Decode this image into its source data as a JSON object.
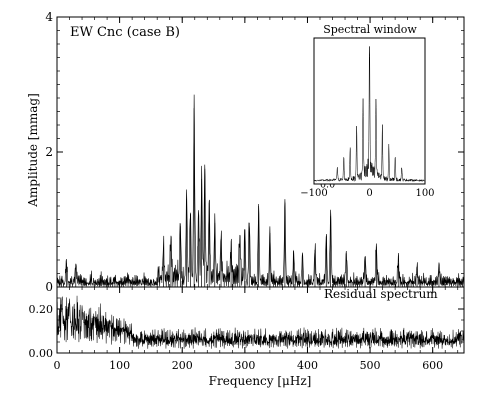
{
  "chart_data": [
    {
      "panel": "main",
      "type": "line",
      "title": "EW Cnc (case B)",
      "xlabel": "Frequency [μHz]",
      "ylabel": "Amplitude [mmag]",
      "xlim": [
        0,
        650
      ],
      "ylim": [
        0,
        4
      ],
      "x_ticks": [
        0,
        100,
        200,
        300,
        400,
        500,
        600
      ],
      "y_ticks": [
        0,
        2,
        4
      ],
      "noise_level": 0.18,
      "peaks": [
        {
          "x": 15,
          "y": 0.35
        },
        {
          "x": 30,
          "y": 0.3
        },
        {
          "x": 170,
          "y": 0.55
        },
        {
          "x": 182,
          "y": 0.7
        },
        {
          "x": 197,
          "y": 0.9
        },
        {
          "x": 207,
          "y": 1.3
        },
        {
          "x": 213,
          "y": 1.1
        },
        {
          "x": 219,
          "y": 2.65
        },
        {
          "x": 226,
          "y": 1.05
        },
        {
          "x": 231,
          "y": 1.6
        },
        {
          "x": 236,
          "y": 1.75
        },
        {
          "x": 243,
          "y": 1.25
        },
        {
          "x": 252,
          "y": 0.95
        },
        {
          "x": 262,
          "y": 0.7
        },
        {
          "x": 278,
          "y": 0.55
        },
        {
          "x": 292,
          "y": 0.75
        },
        {
          "x": 300,
          "y": 0.85
        },
        {
          "x": 307,
          "y": 0.95
        },
        {
          "x": 322,
          "y": 1.2
        },
        {
          "x": 340,
          "y": 0.8
        },
        {
          "x": 364,
          "y": 1.25
        },
        {
          "x": 378,
          "y": 0.5
        },
        {
          "x": 392,
          "y": 0.45
        },
        {
          "x": 412,
          "y": 0.55
        },
        {
          "x": 430,
          "y": 0.75
        },
        {
          "x": 437,
          "y": 1.05
        },
        {
          "x": 462,
          "y": 0.5
        },
        {
          "x": 492,
          "y": 0.45
        },
        {
          "x": 510,
          "y": 0.6
        },
        {
          "x": 545,
          "y": 0.35
        },
        {
          "x": 575,
          "y": 0.3
        },
        {
          "x": 610,
          "y": 0.3
        }
      ]
    },
    {
      "panel": "inset",
      "type": "line",
      "title": "Spectral window",
      "xlim": [
        -100,
        100
      ],
      "ylim": [
        0,
        1.1
      ],
      "x_ticks": [
        -100,
        0,
        100
      ],
      "y_ticks": [
        0.0,
        0.4,
        0.8
      ],
      "peaks": [
        {
          "x": 0,
          "y": 1.0
        },
        {
          "x": -11.6,
          "y": 0.56
        },
        {
          "x": 11.6,
          "y": 0.56
        },
        {
          "x": -23.2,
          "y": 0.4
        },
        {
          "x": 23.2,
          "y": 0.4
        },
        {
          "x": -34.8,
          "y": 0.25
        },
        {
          "x": 34.8,
          "y": 0.25
        },
        {
          "x": -46.4,
          "y": 0.18
        },
        {
          "x": 46.4,
          "y": 0.18
        },
        {
          "x": -58,
          "y": 0.1
        },
        {
          "x": 58,
          "y": 0.1
        }
      ]
    },
    {
      "panel": "residual",
      "type": "line",
      "title": "Residual spectrum",
      "xlabel": "Frequency [μHz]",
      "xlim": [
        0,
        650
      ],
      "ylim": [
        0,
        0.3
      ],
      "x_ticks": [
        0,
        100,
        200,
        300,
        400,
        500,
        600
      ],
      "y_ticks": [
        0.0,
        0.2
      ],
      "y_tick_labels": [
        "0.00",
        "0.20"
      ],
      "peaks": [
        {
          "x": 8,
          "y": 0.28
        },
        {
          "x": 20,
          "y": 0.25
        },
        {
          "x": 40,
          "y": 0.22
        },
        {
          "x": 60,
          "y": 0.18
        },
        {
          "x": 85,
          "y": 0.15
        },
        {
          "x": 105,
          "y": 0.12
        }
      ]
    }
  ]
}
